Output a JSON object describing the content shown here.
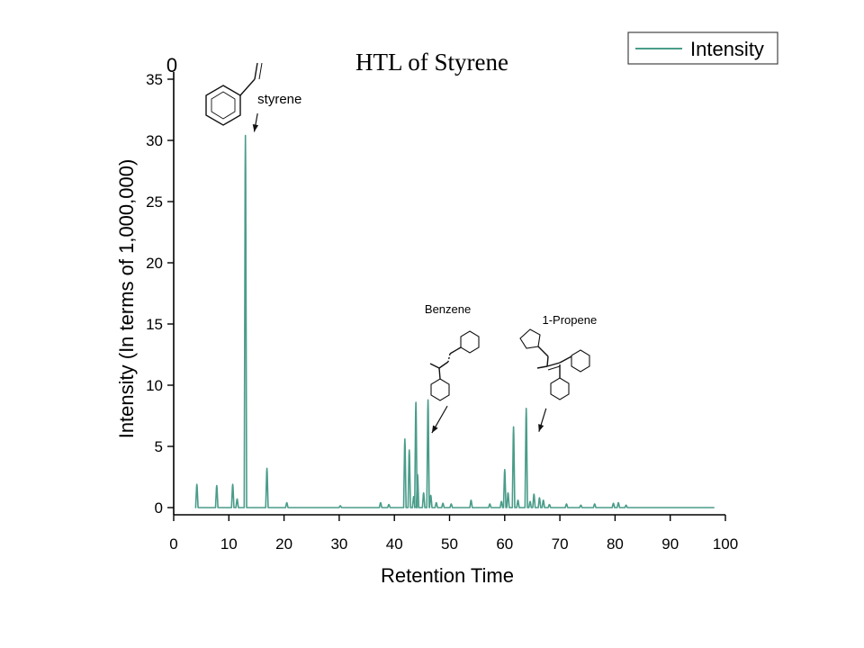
{
  "chart_data": {
    "type": "line",
    "title": "HTL of Styrene",
    "xlabel": "Retention Time",
    "ylabel": "Intensity (In terms of 1,000,000)",
    "xlim": [
      0,
      100
    ],
    "ylim": [
      0,
      35
    ],
    "x_ticks": [
      0,
      10,
      20,
      30,
      40,
      50,
      60,
      70,
      80,
      90,
      100
    ],
    "y_ticks": [
      0,
      5,
      10,
      15,
      20,
      25,
      30,
      35
    ],
    "y_top_label": "0",
    "grid": false,
    "legend": {
      "position": "top-right",
      "entries": [
        "Intensity"
      ]
    },
    "series": [
      {
        "name": "Intensity",
        "color": "#4a9c8a",
        "baseline": [
          4.1,
          98.0
        ],
        "peaks": [
          {
            "x": 4.2,
            "y": 1.9
          },
          {
            "x": 7.8,
            "y": 1.8
          },
          {
            "x": 10.7,
            "y": 1.9
          },
          {
            "x": 11.5,
            "y": 0.7
          },
          {
            "x": 13.0,
            "y": 30.4
          },
          {
            "x": 16.9,
            "y": 3.2
          },
          {
            "x": 20.5,
            "y": 0.4
          },
          {
            "x": 30.2,
            "y": 0.15
          },
          {
            "x": 37.5,
            "y": 0.4
          },
          {
            "x": 39.0,
            "y": 0.25
          },
          {
            "x": 41.9,
            "y": 5.6
          },
          {
            "x": 42.7,
            "y": 4.7
          },
          {
            "x": 43.5,
            "y": 0.9
          },
          {
            "x": 43.9,
            "y": 8.6
          },
          {
            "x": 44.2,
            "y": 2.7
          },
          {
            "x": 45.3,
            "y": 1.2
          },
          {
            "x": 46.1,
            "y": 8.8
          },
          {
            "x": 46.6,
            "y": 1.0
          },
          {
            "x": 47.6,
            "y": 0.4
          },
          {
            "x": 48.8,
            "y": 0.35
          },
          {
            "x": 50.3,
            "y": 0.3
          },
          {
            "x": 53.9,
            "y": 0.6
          },
          {
            "x": 57.3,
            "y": 0.3
          },
          {
            "x": 59.4,
            "y": 0.5
          },
          {
            "x": 60.0,
            "y": 3.1
          },
          {
            "x": 60.6,
            "y": 1.2
          },
          {
            "x": 61.6,
            "y": 6.6
          },
          {
            "x": 62.4,
            "y": 0.6
          },
          {
            "x": 63.9,
            "y": 8.1
          },
          {
            "x": 64.6,
            "y": 0.5
          },
          {
            "x": 65.3,
            "y": 1.1
          },
          {
            "x": 66.3,
            "y": 0.8
          },
          {
            "x": 67.0,
            "y": 0.6
          },
          {
            "x": 68.1,
            "y": 0.25
          },
          {
            "x": 71.2,
            "y": 0.3
          },
          {
            "x": 73.8,
            "y": 0.2
          },
          {
            "x": 76.3,
            "y": 0.3
          },
          {
            "x": 79.7,
            "y": 0.35
          },
          {
            "x": 80.6,
            "y": 0.4
          },
          {
            "x": 82.0,
            "y": 0.2
          }
        ]
      }
    ],
    "annotations": [
      {
        "text": "styrene",
        "x": 15.2,
        "y": 33.0,
        "arrow_from": [
          15.2,
          32.2
        ],
        "arrow_to": [
          14.6,
          30.7
        ]
      },
      {
        "text": "Benzene",
        "x": 45.5,
        "y": 15.9,
        "arrow_from": [
          49.6,
          8.3
        ],
        "arrow_to": [
          46.8,
          6.1
        ]
      },
      {
        "text": "1-Propene",
        "x": 66.8,
        "y": 15.0,
        "arrow_from": [
          67.5,
          8.1
        ],
        "arrow_to": [
          66.2,
          6.2
        ]
      }
    ]
  }
}
